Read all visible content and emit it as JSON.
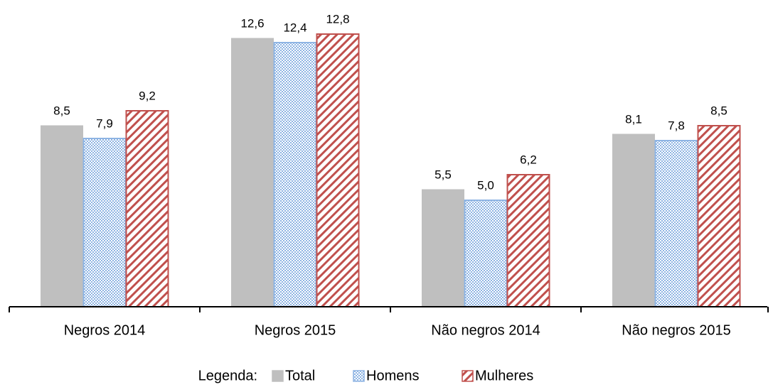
{
  "chart_data": {
    "type": "bar",
    "categories": [
      "Negros 2014",
      "Negros 2015",
      "Não negros 2014",
      "Não negros 2015"
    ],
    "series": [
      {
        "name": "Total",
        "color": "#bfbfbf",
        "pattern": "solid",
        "values": [
          8.5,
          12.6,
          5.5,
          8.1
        ],
        "value_labels": [
          "8,5",
          "12,6",
          "5,5",
          "8,1"
        ]
      },
      {
        "name": "Homens",
        "color": "#8eb4e3",
        "pattern": "dots",
        "values": [
          7.9,
          12.4,
          5.0,
          7.8
        ],
        "value_labels": [
          "7,9",
          "12,4",
          "5,0",
          "7,8"
        ]
      },
      {
        "name": "Mulheres",
        "color": "#c0504d",
        "pattern": "hatch",
        "values": [
          9.2,
          12.8,
          6.2,
          8.5
        ],
        "value_labels": [
          "9,2",
          "12,8",
          "6,2",
          "8,5"
        ]
      }
    ],
    "legend_title": "Legenda:",
    "ylim": [
      0,
      14
    ]
  }
}
